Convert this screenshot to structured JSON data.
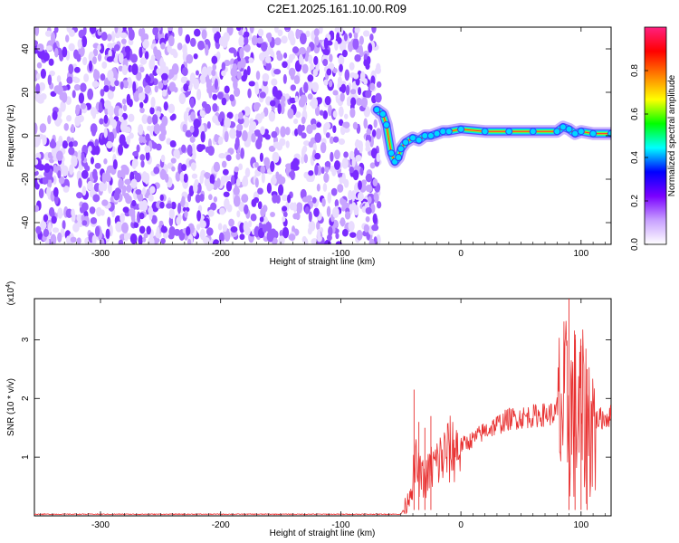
{
  "title": "C2E1.2025.161.10.00.R09",
  "chart_data": [
    {
      "type": "heatmap",
      "panel": "spectrogram",
      "xlabel": "Height of straight line (km)",
      "ylabel": "Frequency (Hz)",
      "xlim": [
        -355,
        125
      ],
      "ylim": [
        -50,
        50
      ],
      "x_ticks": [
        -300,
        -200,
        -100,
        0,
        100
      ],
      "y_ticks": [
        -40,
        -20,
        0,
        20,
        40
      ],
      "noise_region_x": [
        -355,
        -68
      ],
      "noise_colors": [
        "#e9dcff",
        "#c8a4ff",
        "#9a5cff",
        "#7a2bff"
      ],
      "track": {
        "x": [
          -70,
          -65,
          -62,
          -58,
          -55,
          -52,
          -50,
          -46,
          -40,
          -35,
          -30,
          -25,
          -20,
          -15,
          -10,
          0,
          20,
          40,
          60,
          80,
          85,
          90,
          95,
          100,
          110,
          125
        ],
        "y": [
          12,
          10,
          5,
          -8,
          -12,
          -10,
          -6,
          -3,
          -1,
          -2,
          0,
          0,
          1,
          2,
          2,
          3,
          2,
          2,
          2,
          2,
          4,
          3,
          1,
          2,
          1,
          1
        ]
      },
      "colorbar": {
        "label": "Normalized spectral amplitude",
        "ticks": [
          "0.0",
          "0.2",
          "0.4",
          "0.6",
          "0.8"
        ],
        "colors": [
          "#ffffff",
          "#c8a0ff",
          "#7a00ff",
          "#0000ff",
          "#00ffff",
          "#00ff00",
          "#ffff00",
          "#ff8000",
          "#ff0000",
          "#ff2080"
        ]
      }
    },
    {
      "type": "line",
      "panel": "snr",
      "xlabel": "Height of straight line (km)",
      "ylabel": "SNR (10 * v/v)",
      "exponent_label": "(x10",
      "exponent_sup": "4",
      "exponent_close": ")",
      "xlim": [
        -355,
        125
      ],
      "ylim": [
        0,
        3.7
      ],
      "x_ticks": [
        -300,
        -200,
        -100,
        0,
        100
      ],
      "y_ticks": [
        1,
        2,
        3
      ],
      "color": "#e83030",
      "envelope": {
        "x": [
          -355,
          -50,
          -45,
          -40,
          -38,
          -35,
          -30,
          -25,
          -20,
          -15,
          -10,
          0,
          10,
          20,
          30,
          40,
          60,
          80,
          90,
          95,
          100,
          105,
          110,
          115,
          125
        ],
        "y": [
          0.02,
          0.02,
          0.2,
          0.6,
          0.9,
          0.7,
          0.6,
          0.8,
          0.9,
          1.0,
          1.1,
          1.2,
          1.3,
          1.45,
          1.55,
          1.65,
          1.7,
          1.75,
          1.8,
          1.75,
          1.7,
          1.6,
          1.6,
          1.65,
          1.7
        ]
      },
      "spikes": [
        {
          "x": -39,
          "y": 2.15
        },
        {
          "x": -35,
          "y": 1.6
        },
        {
          "x": -30,
          "y": 1.5
        },
        {
          "x": -25,
          "y": 1.7
        },
        {
          "x": 90,
          "y": 3.7
        },
        {
          "x": 95,
          "y": 3.0
        },
        {
          "x": 100,
          "y": 2.9
        },
        {
          "x": 105,
          "y": 2.5
        }
      ]
    }
  ]
}
